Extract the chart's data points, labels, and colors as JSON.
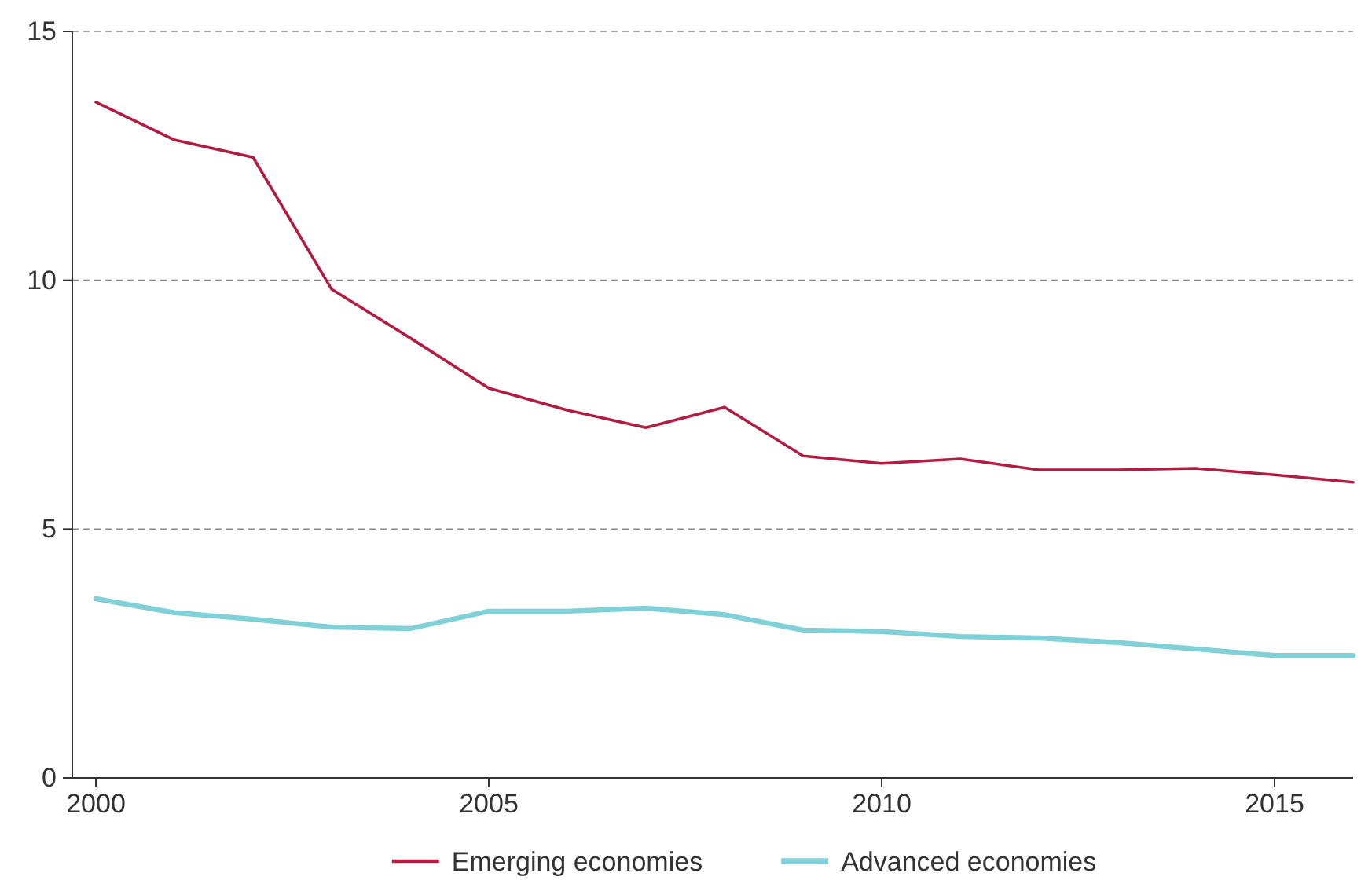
{
  "chart_data": {
    "type": "line",
    "x": [
      2000,
      2001,
      2002,
      2003,
      2004,
      2005,
      2006,
      2007,
      2008,
      2009,
      2010,
      2011,
      2012,
      2013,
      2014,
      2015,
      2016
    ],
    "series": [
      {
        "name": "Emerging economies",
        "color": "#b31b40",
        "values": [
          13.58,
          12.82,
          12.47,
          9.82,
          8.84,
          7.83,
          7.39,
          7.04,
          7.45,
          6.47,
          6.32,
          6.41,
          6.19,
          6.19,
          6.22,
          6.09,
          5.94
        ]
      },
      {
        "name": "Advanced economies",
        "color": "#80d0d8",
        "values": [
          3.6,
          3.32,
          3.19,
          3.03,
          3.0,
          3.35,
          3.35,
          3.41,
          3.28,
          2.97,
          2.94,
          2.84,
          2.81,
          2.72,
          2.59,
          2.46,
          2.46
        ]
      }
    ],
    "xlim": [
      1999.7,
      2016
    ],
    "xticks": [
      2000,
      2005,
      2010,
      2015
    ],
    "ylim": [
      0,
      15
    ],
    "yticks": [
      0,
      5,
      10,
      15
    ],
    "grid": "y",
    "legend": "bottom",
    "marker": "none",
    "line_style": "solid"
  }
}
